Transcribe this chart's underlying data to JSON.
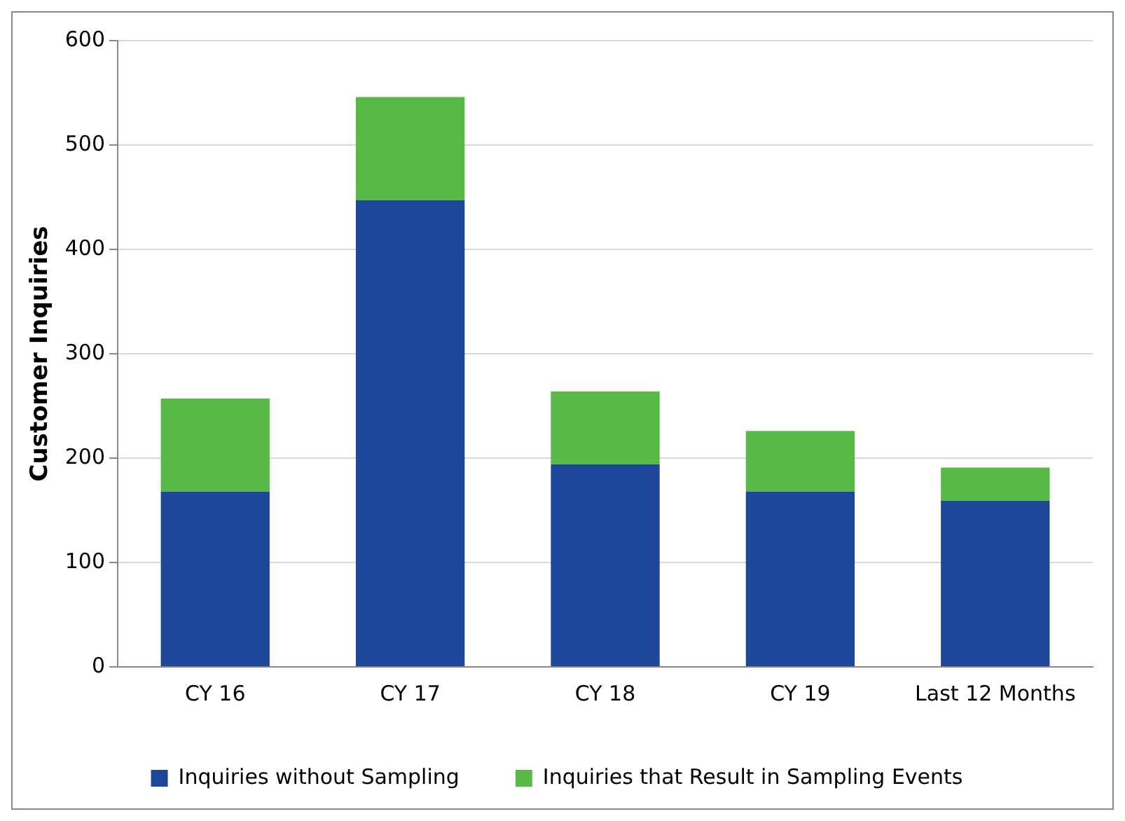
{
  "chart_data": {
    "type": "bar",
    "stacked": true,
    "ylabel": "Customer Inquiries",
    "categories": [
      "CY 16",
      "CY 17",
      "CY 18",
      "CY 19",
      "Last 12 Months"
    ],
    "series": [
      {
        "name": "Inquiries without Sampling",
        "color": "#1f4799",
        "values": [
          168,
          447,
          194,
          168,
          159
        ]
      },
      {
        "name": "Inquiries that Result in Sampling Events",
        "color": "#59b947",
        "values": [
          89,
          99,
          70,
          58,
          32
        ]
      }
    ],
    "ylim": [
      0,
      600
    ],
    "yticks": [
      0,
      100,
      200,
      300,
      400,
      500,
      600
    ],
    "grid": "y",
    "legend": "bottom"
  }
}
